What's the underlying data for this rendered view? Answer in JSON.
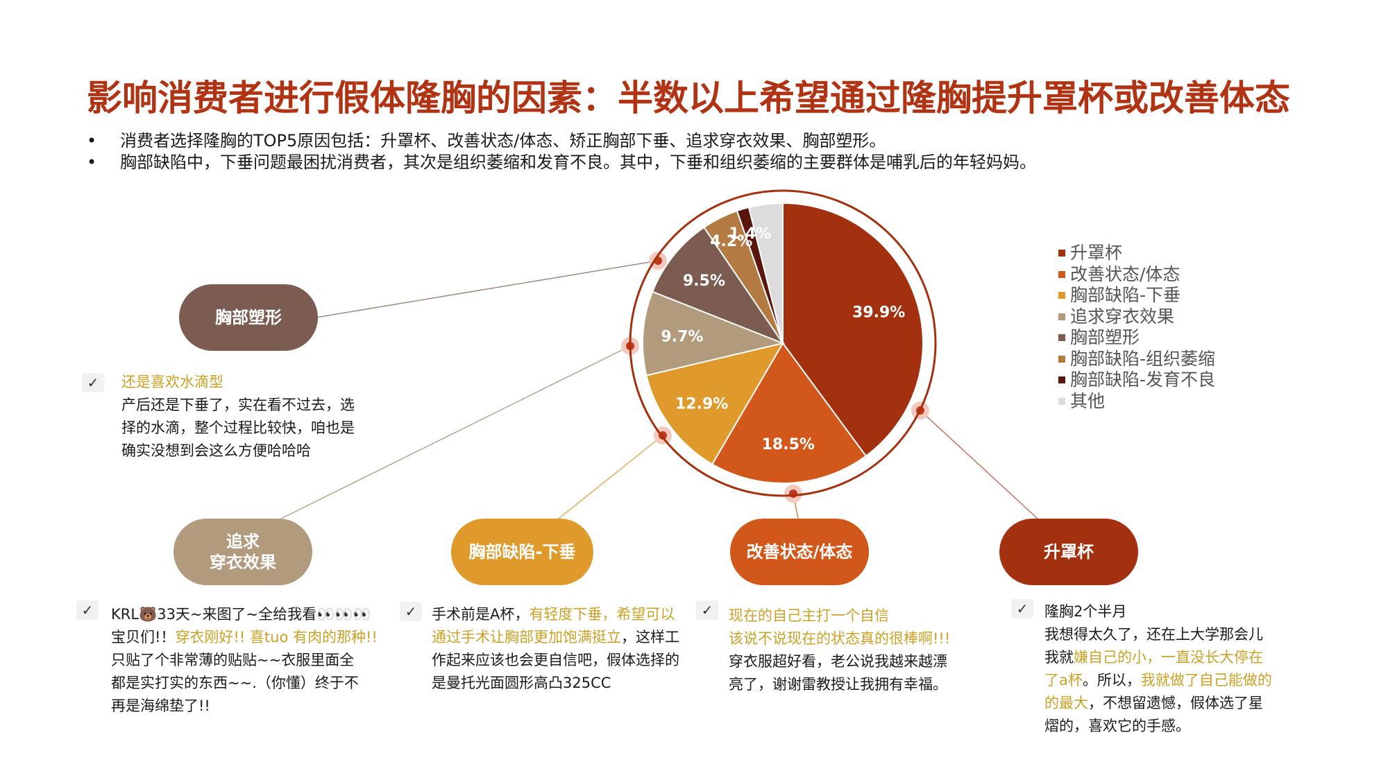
{
  "title": "影响消费者进行假体隆胸的因素：半数以上希望通过隆胸提升罩杯或改善体态",
  "bullets": [
    "消费者选择隆胸的TOP5原因包括：升罩杯、改善状态/体态、矫正胸部下垂、追求穿衣效果、胸部塑形。",
    "胸部缺陷中，下垂问题最困扰消费者，其次是组织萎缩和发育不良。其中，下垂和组织萎缩的主要群体是哺乳后的年轻妈妈。"
  ],
  "chart_data": {
    "type": "pie",
    "start_angle_deg": 0,
    "direction": "clockwise",
    "series": [
      {
        "name": "升罩杯",
        "value": 39.9,
        "label": "39.9%",
        "color": "#a3300f"
      },
      {
        "name": "改善状态/体态",
        "value": 18.5,
        "label": "18.5%",
        "color": "#d1581a"
      },
      {
        "name": "胸部缺陷-下垂",
        "value": 12.9,
        "label": "12.9%",
        "color": "#e09a2b"
      },
      {
        "name": "追求穿衣效果",
        "value": 9.7,
        "label": "9.7%",
        "color": "#b29a7c"
      },
      {
        "name": "胸部塑形",
        "value": 9.5,
        "label": "9.5%",
        "color": "#7c5c50"
      },
      {
        "name": "胸部缺陷-组织萎缩",
        "value": 4.2,
        "label": "4.2%",
        "color": "#b37a42"
      },
      {
        "name": "胸部缺陷-发育不良",
        "value": 1.4,
        "label": "1.4%",
        "color": "#5a160c"
      },
      {
        "name": "其他",
        "value": 3.9,
        "label": "",
        "color": "#dcdcdc"
      }
    ],
    "legend_position": "right",
    "outer_ring_color": "#a3300f"
  },
  "pills": {
    "shaping": {
      "label": "胸部塑形",
      "color": "#7c5c50"
    },
    "clothing": {
      "label": "追求\n穿衣效果",
      "color": "#b29a7c"
    },
    "sagging": {
      "label": "胸部缺陷-下垂",
      "color": "#e09a2b"
    },
    "posture": {
      "label": "改善状态/体态",
      "color": "#d1581a"
    },
    "cup": {
      "label": "升罩杯",
      "color": "#a3300f"
    }
  },
  "quotes": {
    "shaping": {
      "check": "✓",
      "l1": "还是喜欢水滴型",
      "l2": "产后还是下垂了，实在看不过去，选",
      "l3": "择的水滴，整个过程比较快，咱也是",
      "l4": "确实没想到会这么方便哈哈哈"
    },
    "clothing": {
      "check": "✓",
      "l1": "KRL🐻33天~来图了~全给我看👀👀👀",
      "l2a": "宝贝们!！",
      "l2b": "穿衣刚好!! 喜tuo 有肉的那种!!",
      "l3": "只贴了个非常薄的贴贴~~衣服里面全",
      "l4": "都是实打实的东西~~.（你懂）终于不",
      "l5": "再是海绵垫了!!"
    },
    "sagging": {
      "check": "✓",
      "l1a": "手术前是A杯，",
      "l1b": "有轻度下垂，希望可以",
      "l2a": "通过手术让胸部更加饱满挺立",
      "l2b": "，这样工",
      "l3": "作起来应该也会更自信吧，假体选择的",
      "l4": "是曼托光面圆形高凸325CC"
    },
    "posture": {
      "check": "✓",
      "l1": "现在的自己主打一个自信",
      "l2": "该说不说现在的状态真的很棒啊!!!",
      "l3": "穿衣服超好看，老公说我越来越漂",
      "l4": "亮了，谢谢雷教授让我拥有幸福。"
    },
    "cup": {
      "check": "✓",
      "l1": "隆胸2个半月",
      "l2": "我想得太久了，还在上大学那会儿",
      "l3a": "我就",
      "l3b": "嫌自己的小，一直没长大停在",
      "l4a": "了a杯",
      "l4b": "。所以，",
      "l4c": "我就做了自己能做的",
      "l5a": "的最大",
      "l5b": "，不想留遗憾，假体选了星",
      "l6": "熠的，喜欢它的手感。"
    }
  }
}
